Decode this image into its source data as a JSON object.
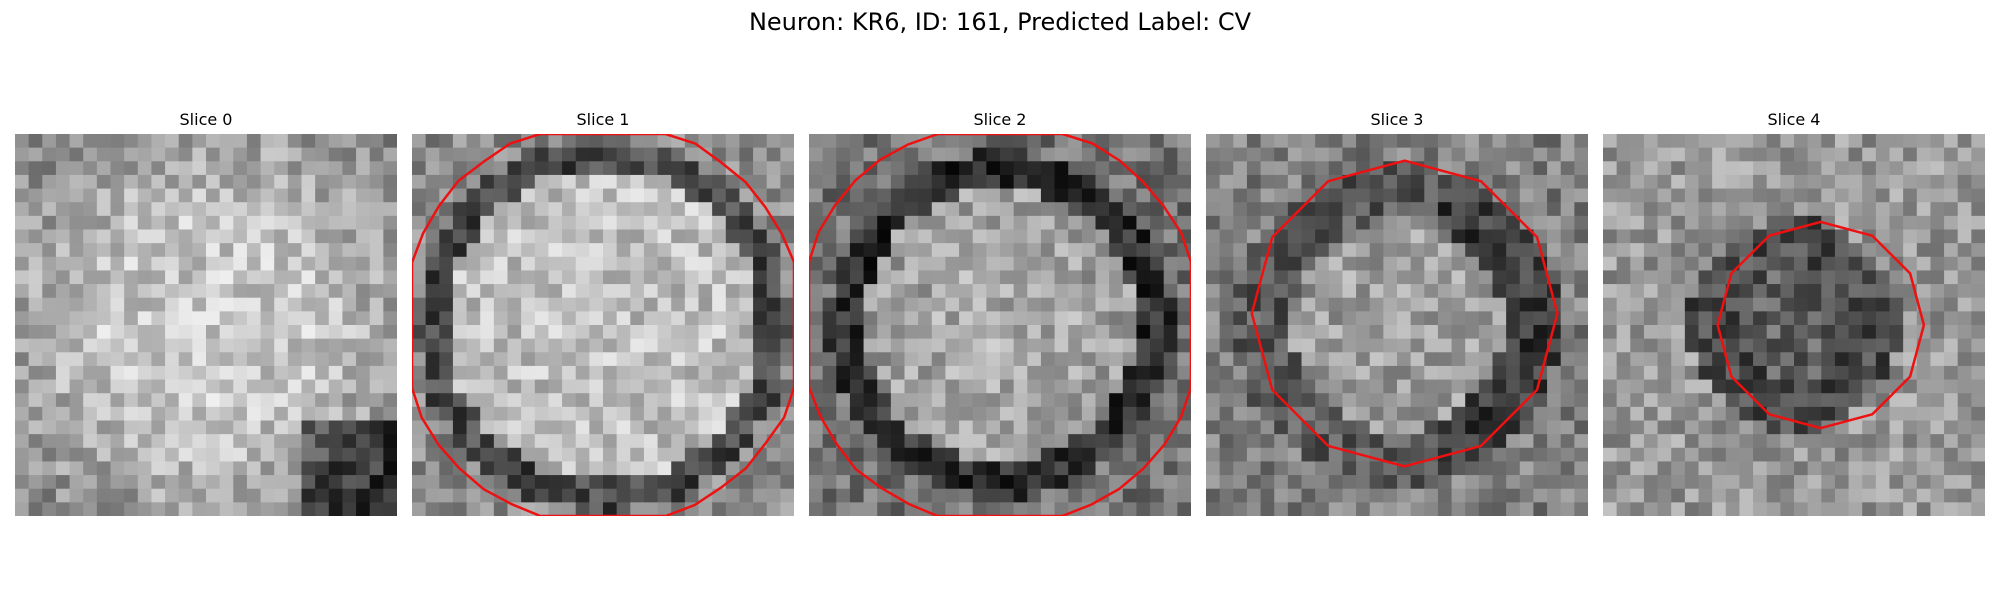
{
  "figure": {
    "title": "Neuron: KR6, ID: 161, Predicted Label: CV"
  },
  "panels": [
    {
      "title": "Slice 0",
      "pattern": "bright-disc",
      "contour": "none"
    },
    {
      "title": "Slice 1",
      "pattern": "bright-disc-dark-ring",
      "contour": "large-circle"
    },
    {
      "title": "Slice 2",
      "pattern": "mid-disc-dark-ring",
      "contour": "large-circle"
    },
    {
      "title": "Slice 3",
      "pattern": "dark-ring-inner",
      "contour": "medium-octagon"
    },
    {
      "title": "Slice 4",
      "pattern": "dark-core",
      "contour": "small-octagon"
    }
  ],
  "colors": {
    "contour": "#ee1111",
    "background": "#ffffff"
  }
}
